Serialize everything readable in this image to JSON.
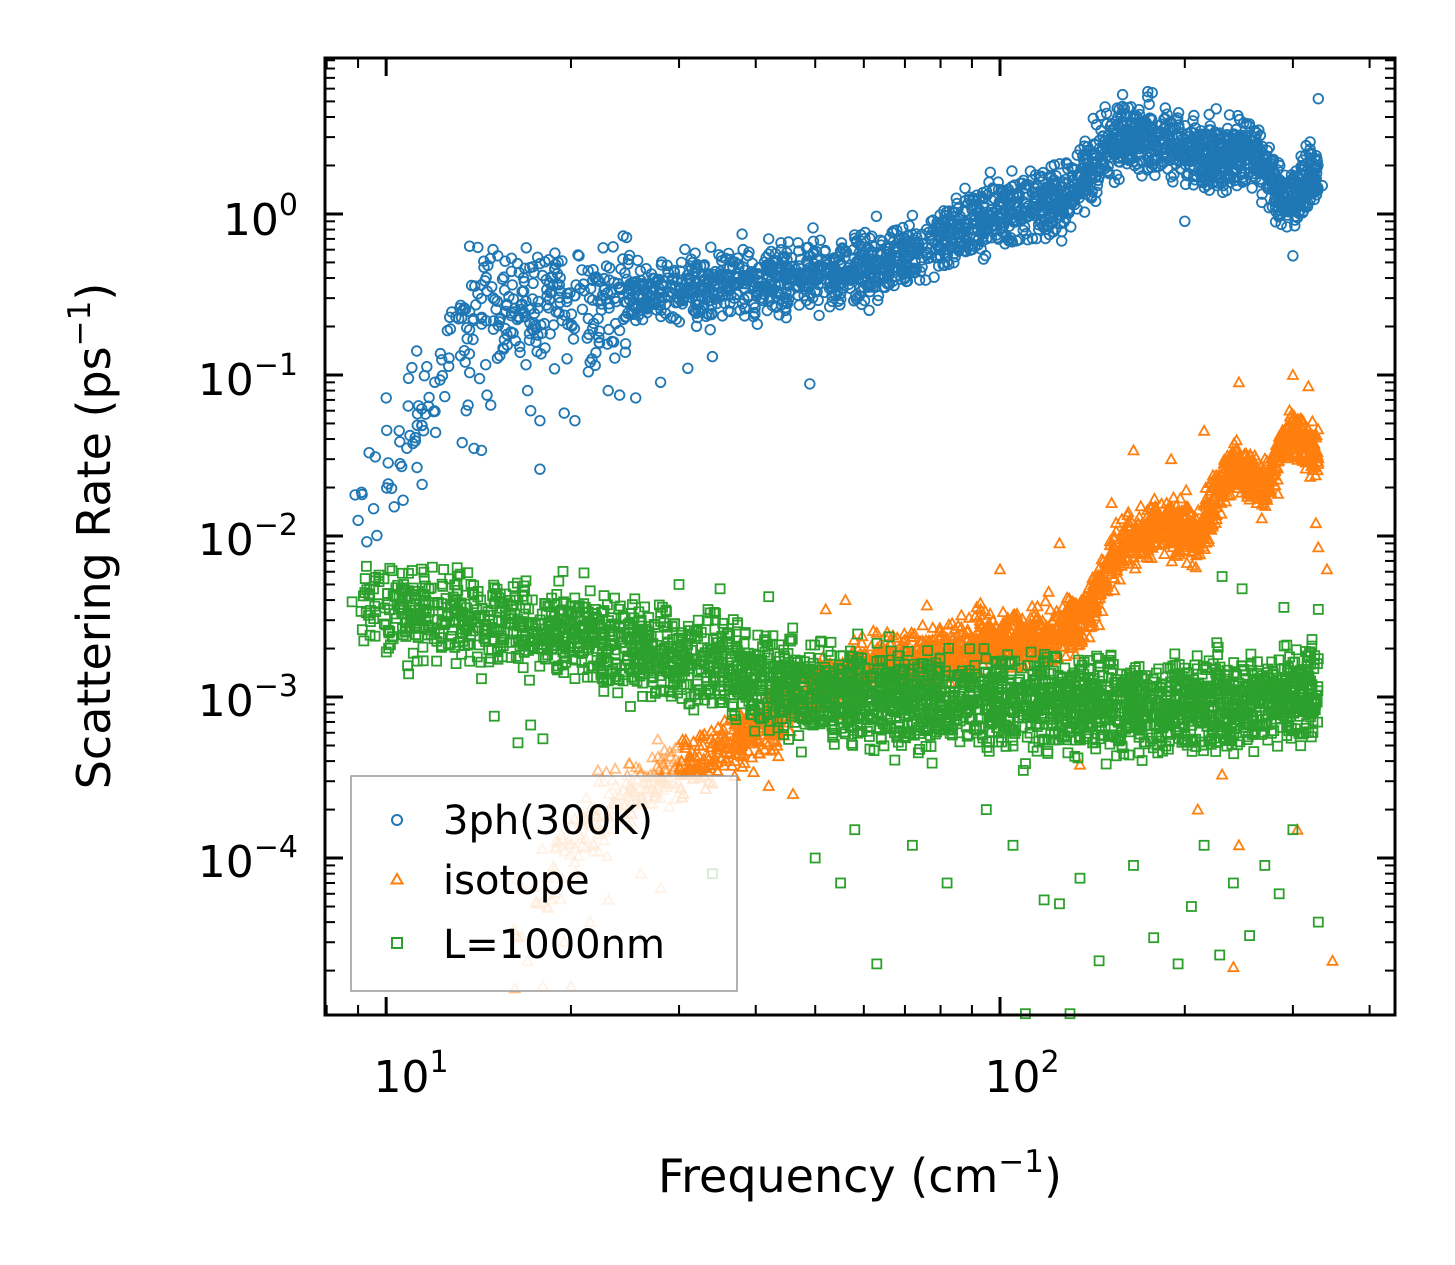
{
  "chart_data": {
    "type": "scatter",
    "title": "",
    "xlabel": "Frequency (cm",
    "xlabel_sup": "−1",
    "xlabel_tail": ")",
    "ylabel": "Scattering Rate (ps",
    "ylabel_sup": "−1",
    "ylabel_tail": ")",
    "xscale": "log",
    "yscale": "log",
    "xlim": [
      7.95,
      440
    ],
    "ylim": [
      1.06e-05,
      9.3
    ],
    "x_ticks": [
      {
        "value": 10,
        "base": "10",
        "exp": "1"
      },
      {
        "value": 100,
        "base": "10",
        "exp": "2"
      }
    ],
    "y_ticks": [
      {
        "value": 1,
        "base": "10",
        "exp": "0"
      },
      {
        "value": 0.1,
        "base": "10",
        "exp": "−1"
      },
      {
        "value": 0.01,
        "base": "10",
        "exp": "−2"
      },
      {
        "value": 0.001,
        "base": "10",
        "exp": "−3"
      },
      {
        "value": 0.0001,
        "base": "10",
        "exp": "−4"
      }
    ],
    "legend_position": "bottom-left",
    "series": [
      {
        "name": "3ph(300K)",
        "marker": "circle",
        "color": "#1f77b4",
        "trend": [
          [
            9.0,
            0.018
          ],
          [
            11,
            0.045
          ],
          [
            14,
            0.25
          ],
          [
            20,
            0.28
          ],
          [
            30,
            0.33
          ],
          [
            40,
            0.38
          ],
          [
            60,
            0.45
          ],
          [
            80,
            0.7
          ],
          [
            100,
            1.0
          ],
          [
            130,
            1.3
          ],
          [
            150,
            2.8
          ],
          [
            180,
            3.0
          ],
          [
            220,
            2.2
          ],
          [
            260,
            2.5
          ],
          [
            290,
            1.2
          ],
          [
            330,
            1.8
          ]
        ],
        "samples": [
          [
            8.9,
            0.018
          ],
          [
            9.0,
            0.0125
          ],
          [
            9.3,
            0.0092
          ],
          [
            9.6,
            0.031
          ],
          [
            10.0,
            0.072
          ],
          [
            10.5,
            0.045
          ],
          [
            10.6,
            0.027
          ],
          [
            12.0,
            0.09
          ],
          [
            13.3,
            0.038
          ],
          [
            13.5,
            0.06
          ],
          [
            13.6,
            0.065
          ],
          [
            13.9,
            0.035
          ],
          [
            14.3,
            0.034
          ],
          [
            14.2,
            0.095
          ],
          [
            14.6,
            0.075
          ],
          [
            14.8,
            0.065
          ],
          [
            14.1,
            0.62
          ],
          [
            15.2,
            0.55
          ],
          [
            16.0,
            0.53
          ],
          [
            16.5,
            0.15
          ],
          [
            17.0,
            0.08
          ],
          [
            17.2,
            0.06
          ],
          [
            17.8,
            0.052
          ],
          [
            17.8,
            0.026
          ],
          [
            18.5,
            0.18
          ],
          [
            19.5,
            0.058
          ],
          [
            20.3,
            0.052
          ],
          [
            21.5,
            0.12
          ],
          [
            23.0,
            0.08
          ],
          [
            24.0,
            0.075
          ],
          [
            25.5,
            0.072
          ],
          [
            28.0,
            0.09
          ],
          [
            31.0,
            0.11
          ],
          [
            34.0,
            0.13
          ],
          [
            49.0,
            0.088
          ],
          [
            38.0,
            0.75
          ],
          [
            42.0,
            0.7
          ],
          [
            44.0,
            0.6
          ],
          [
            52.0,
            0.5
          ],
          [
            60.0,
            0.55
          ],
          [
            65.0,
            0.35
          ],
          [
            72.0,
            0.98
          ],
          [
            90.0,
            0.8
          ],
          [
            105.0,
            1.3
          ],
          [
            125.0,
            1.1
          ],
          [
            135.0,
            2.5
          ],
          [
            145.0,
            1.7
          ],
          [
            160.0,
            4.2
          ],
          [
            175.0,
            4.8
          ],
          [
            185.0,
            2.1
          ],
          [
            200.0,
            0.9
          ],
          [
            210.0,
            3.0
          ],
          [
            225.0,
            4.5
          ],
          [
            245.0,
            2.6
          ],
          [
            260.0,
            3.0
          ],
          [
            280.0,
            1.8
          ],
          [
            300.0,
            0.55
          ],
          [
            320.0,
            2.8
          ],
          [
            330.0,
            5.2
          ],
          [
            335.0,
            1.5
          ]
        ]
      },
      {
        "name": "isotope",
        "marker": "triangle",
        "color": "#ff7f0e",
        "trend": [
          [
            16,
            4e-05
          ],
          [
            20,
            0.00013
          ],
          [
            25,
            0.00024
          ],
          [
            30,
            0.00037
          ],
          [
            40,
            0.00058
          ],
          [
            50,
            0.0011
          ],
          [
            65,
            0.0017
          ],
          [
            80,
            0.0018
          ],
          [
            100,
            0.0024
          ],
          [
            120,
            0.0023
          ],
          [
            140,
            0.0035
          ],
          [
            155,
            0.008
          ],
          [
            180,
            0.012
          ],
          [
            210,
            0.01
          ],
          [
            240,
            0.028
          ],
          [
            270,
            0.02
          ],
          [
            300,
            0.045
          ],
          [
            330,
            0.03
          ]
        ],
        "samples": [
          [
            16.2,
            1.55e-05
          ],
          [
            18.0,
            1.6e-05
          ],
          [
            20.0,
            1.6e-05
          ],
          [
            17.0,
            2.3e-05
          ],
          [
            19.5,
            3e-05
          ],
          [
            21.5,
            4e-05
          ],
          [
            23.0,
            5.5e-05
          ],
          [
            26.0,
            8e-05
          ],
          [
            28.0,
            6.5e-05
          ],
          [
            30.5,
            0.00025
          ],
          [
            32.0,
            0.00034
          ],
          [
            34.0,
            0.00029
          ],
          [
            37.0,
            0.0004
          ],
          [
            42.0,
            0.00028
          ],
          [
            46.0,
            0.00025
          ],
          [
            52.0,
            0.0035
          ],
          [
            56.0,
            0.004
          ],
          [
            63.0,
            0.0025
          ],
          [
            76.0,
            0.0037
          ],
          [
            100.0,
            0.0062
          ],
          [
            105.0,
            0.0032
          ],
          [
            120.0,
            0.0045
          ],
          [
            125.0,
            0.009
          ],
          [
            135.0,
            0.00038
          ],
          [
            152.0,
            0.016
          ],
          [
            165.0,
            0.034
          ],
          [
            190.0,
            0.03
          ],
          [
            215.0,
            0.045
          ],
          [
            245.0,
            0.09
          ],
          [
            262.0,
            0.016
          ],
          [
            300.0,
            0.1
          ],
          [
            318.0,
            0.085
          ],
          [
            327.0,
            0.012
          ],
          [
            330.0,
            0.0085
          ],
          [
            341.0,
            0.0062
          ],
          [
            305.0,
            0.00015
          ],
          [
            245.0,
            0.00012
          ],
          [
            240.0,
            2.1e-05
          ],
          [
            348.0,
            2.3e-05
          ],
          [
            230.0,
            0.00033
          ],
          [
            210.0,
            0.0002
          ]
        ]
      },
      {
        "name": "L=1000nm",
        "marker": "square",
        "color": "#2ca02c",
        "trend": [
          [
            9,
            0.0037
          ],
          [
            12,
            0.0032
          ],
          [
            15,
            0.003
          ],
          [
            20,
            0.0025
          ],
          [
            30,
            0.0018
          ],
          [
            50,
            0.0011
          ],
          [
            80,
            0.0009
          ],
          [
            100,
            0.00095
          ],
          [
            150,
            0.0009
          ],
          [
            200,
            0.00085
          ],
          [
            260,
            0.00095
          ],
          [
            330,
            0.0011
          ]
        ],
        "samples": [
          [
            8.8,
            0.0039
          ],
          [
            9.1,
            0.0034
          ],
          [
            9.4,
            0.0047
          ],
          [
            9.7,
            0.0038
          ],
          [
            10.1,
            0.0025
          ],
          [
            10.6,
            0.0033
          ],
          [
            11.3,
            0.0033
          ],
          [
            12.5,
            0.0029
          ],
          [
            13.2,
            0.0058
          ],
          [
            13.9,
            0.0038
          ],
          [
            14.3,
            0.0013
          ],
          [
            15.0,
            0.00076
          ],
          [
            16.4,
            0.00052
          ],
          [
            17.2,
            0.00067
          ],
          [
            18.0,
            0.00055
          ],
          [
            21.0,
            0.0059
          ],
          [
            22.5,
            0.0013
          ],
          [
            26.0,
            0.0021
          ],
          [
            30.0,
            0.005
          ],
          [
            35.0,
            0.0047
          ],
          [
            42.0,
            0.0042
          ],
          [
            34.0,
            8e-05
          ],
          [
            50.0,
            0.0001
          ],
          [
            55.0,
            7e-05
          ],
          [
            58.0,
            0.00015
          ],
          [
            63.0,
            2.2e-05
          ],
          [
            72.0,
            0.00012
          ],
          [
            82.0,
            7e-05
          ],
          [
            95.0,
            0.0002
          ],
          [
            105.0,
            0.00012
          ],
          [
            118.0,
            5.5e-05
          ],
          [
            125.0,
            5.2e-05
          ],
          [
            135.0,
            7.5e-05
          ],
          [
            145.0,
            2.3e-05
          ],
          [
            165.0,
            9e-05
          ],
          [
            178.0,
            3.2e-05
          ],
          [
            195.0,
            2.2e-05
          ],
          [
            205.0,
            5e-05
          ],
          [
            215.0,
            0.00012
          ],
          [
            228.0,
            2.5e-05
          ],
          [
            240.0,
            7e-05
          ],
          [
            255.0,
            3.3e-05
          ],
          [
            270.0,
            9e-05
          ],
          [
            285.0,
            6e-05
          ],
          [
            300.0,
            0.00015
          ],
          [
            330.0,
            4e-05
          ],
          [
            110.0,
            1.08e-05
          ],
          [
            130.0,
            1.08e-05
          ],
          [
            230.0,
            0.0056
          ],
          [
            248.0,
            0.0047
          ],
          [
            290.0,
            0.0036
          ],
          [
            330.0,
            0.0035
          ]
        ]
      }
    ]
  }
}
